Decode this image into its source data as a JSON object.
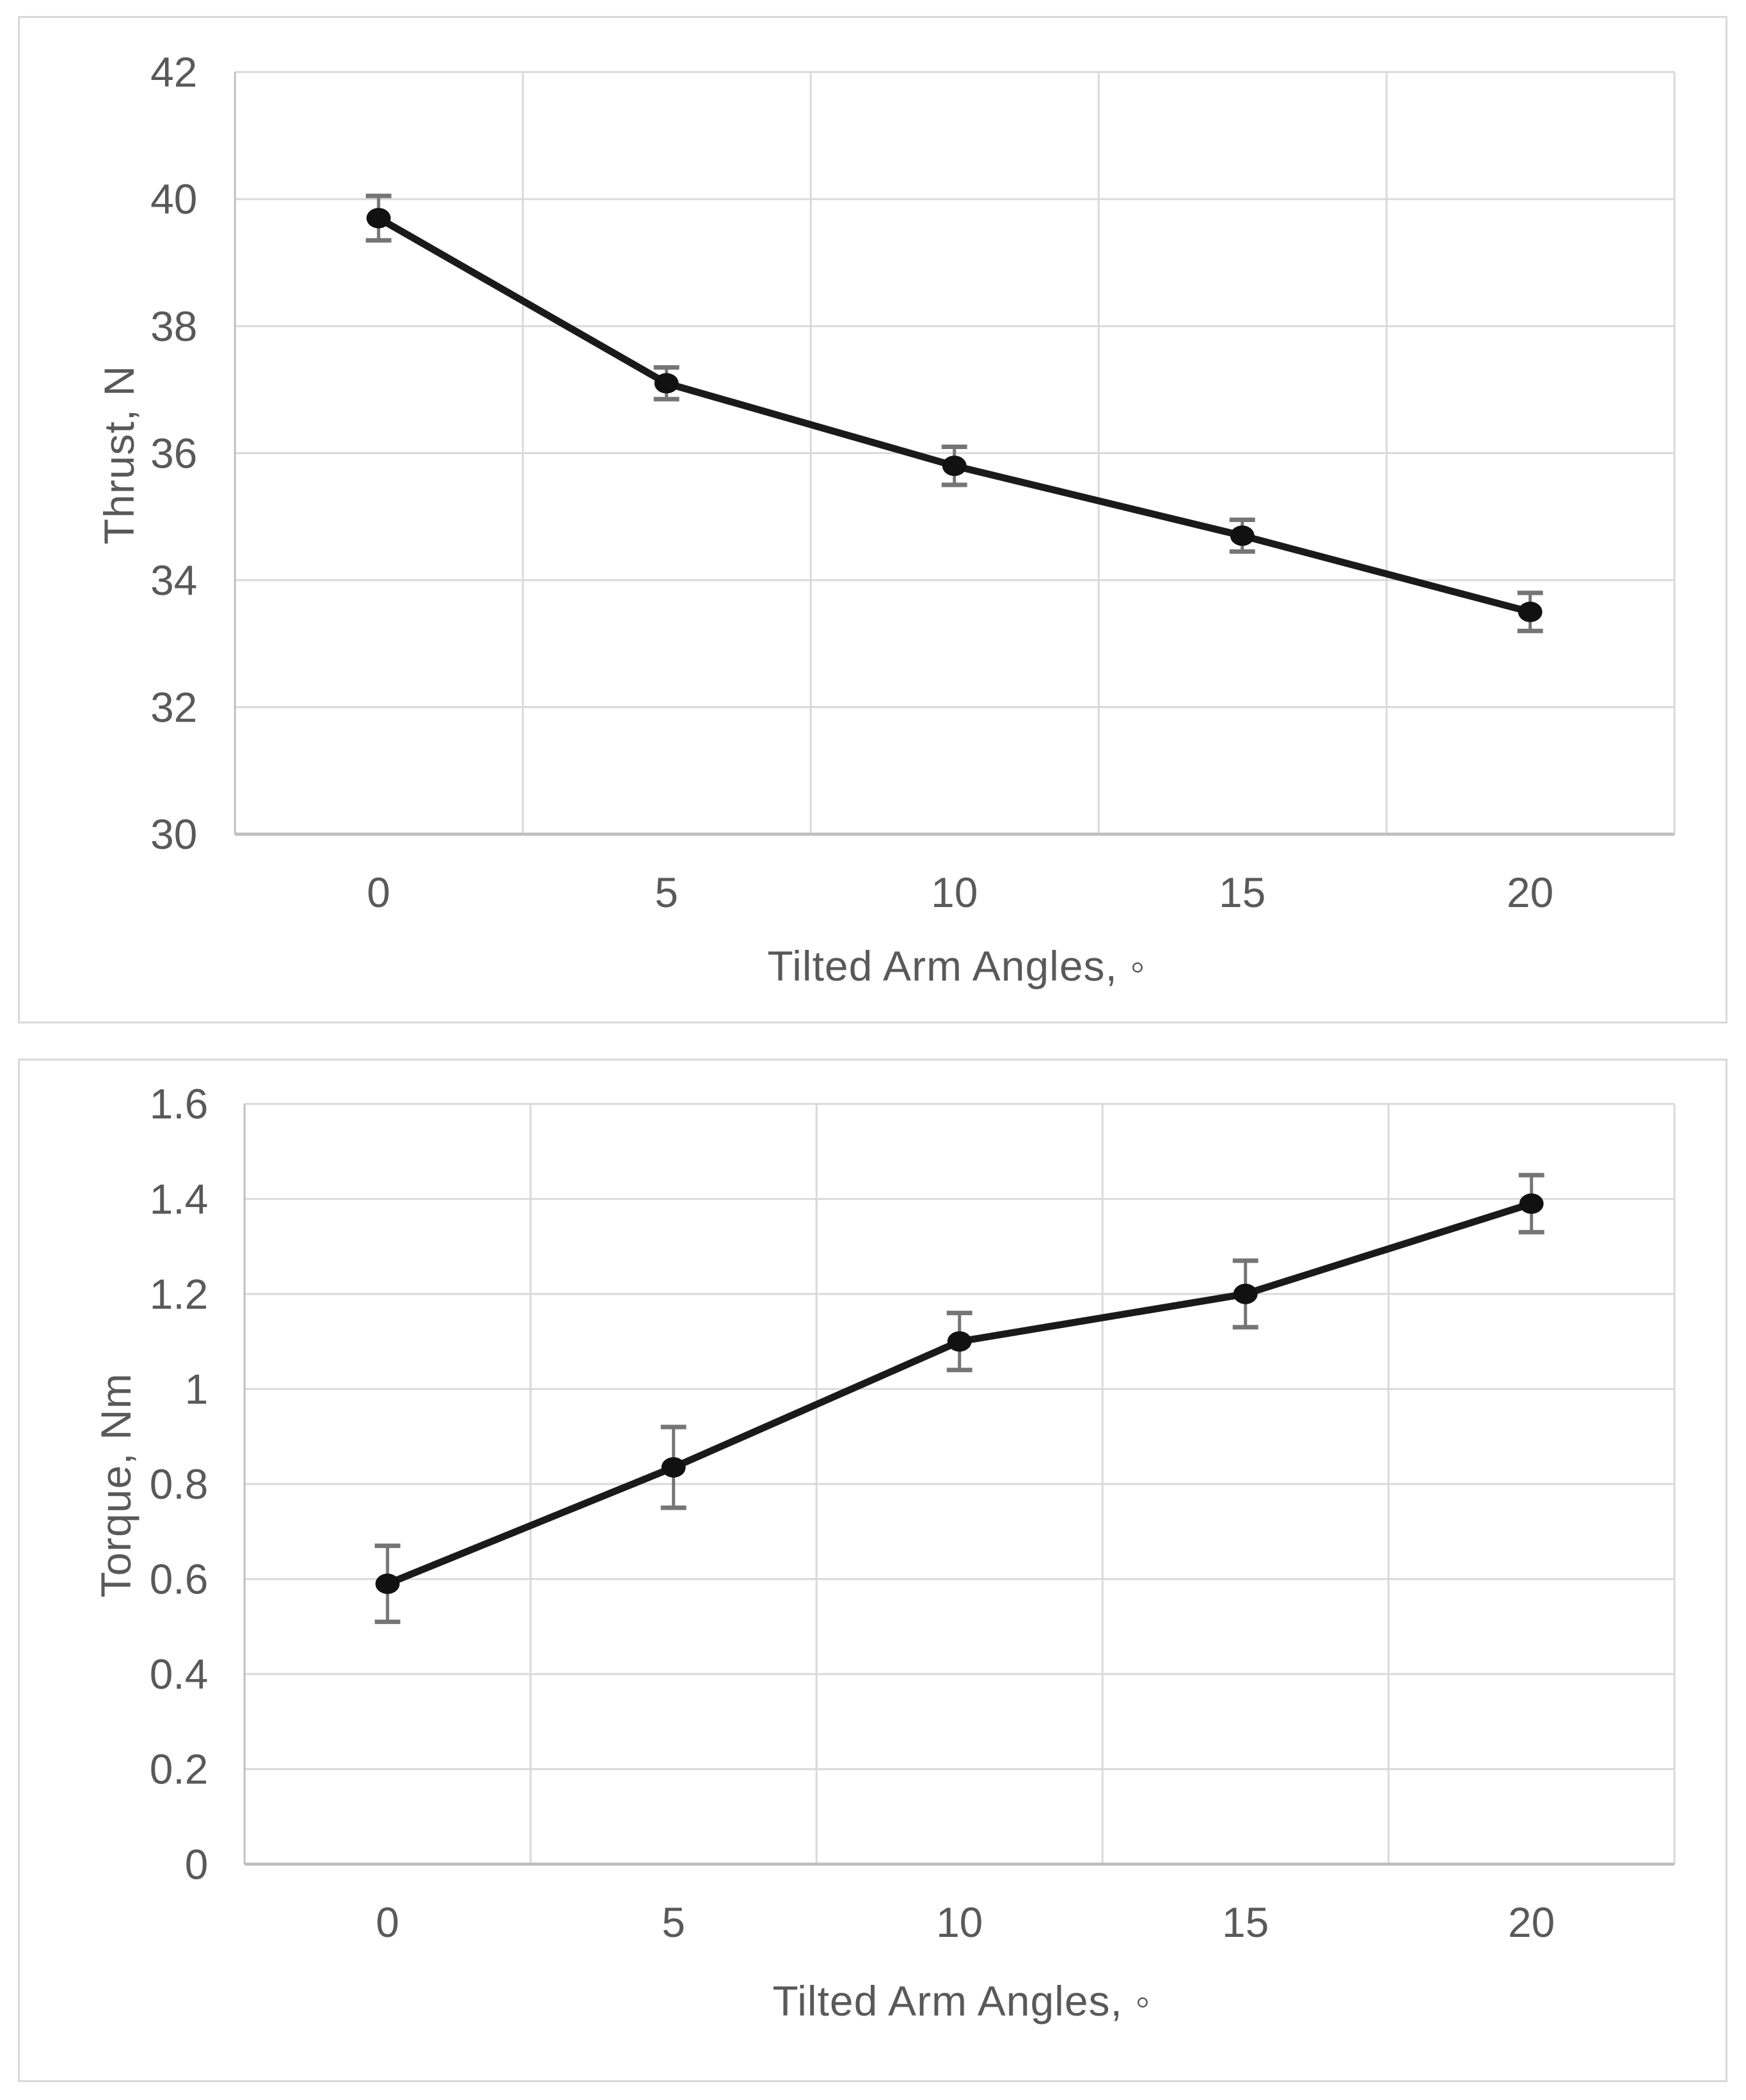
{
  "page": {
    "background": "#ffffff",
    "card_border_color": "#d9d9d9"
  },
  "chart_data": [
    {
      "id": "thrust",
      "type": "line",
      "title": "",
      "xlabel": "Tilted Arm Angles, ◦",
      "ylabel": "Thrust, N",
      "categories": [
        0,
        5,
        10,
        15,
        20
      ],
      "x_tick_labels": [
        "0",
        "5",
        "10",
        "15",
        "20"
      ],
      "y_tick_labels": [
        "42",
        "40",
        "38",
        "36",
        "34",
        "32",
        "30"
      ],
      "ylim": [
        30,
        42
      ],
      "y_major_unit": 2,
      "grid": true,
      "legend_position": "none",
      "marker": "filled-circle",
      "series": [
        {
          "name": "Thrust",
          "values": [
            39.7,
            37.1,
            35.8,
            34.7,
            33.5
          ],
          "error_bars": [
            0.35,
            0.25,
            0.3,
            0.25,
            0.3
          ]
        }
      ],
      "colors": {
        "line": "#1a1a1a",
        "marker": "#111111",
        "error_bar": "#757575",
        "gridline": "#d9d9d9",
        "axis_line": "#bfbfbf",
        "text": "#595959"
      }
    },
    {
      "id": "torque",
      "type": "line",
      "title": "",
      "xlabel": "Tilted Arm Angles, ◦",
      "ylabel": "Torque, Nm",
      "categories": [
        0,
        5,
        10,
        15,
        20
      ],
      "x_tick_labels": [
        "0",
        "5",
        "10",
        "15",
        "20"
      ],
      "y_tick_labels": [
        "1.6",
        "1.4",
        "1.2",
        "1",
        "0.8",
        "0.6",
        "0.4",
        "0.2",
        "0"
      ],
      "ylim": [
        0,
        1.6
      ],
      "y_major_unit": 0.2,
      "grid": true,
      "legend_position": "none",
      "marker": "filled-circle",
      "series": [
        {
          "name": "Torque",
          "values": [
            0.59,
            0.835,
            1.1,
            1.2,
            1.39
          ],
          "error_bars": [
            0.08,
            0.085,
            0.06,
            0.07,
            0.06
          ]
        }
      ],
      "colors": {
        "line": "#1a1a1a",
        "marker": "#111111",
        "error_bar": "#757575",
        "gridline": "#d9d9d9",
        "axis_line": "#bfbfbf",
        "text": "#595959"
      }
    }
  ]
}
